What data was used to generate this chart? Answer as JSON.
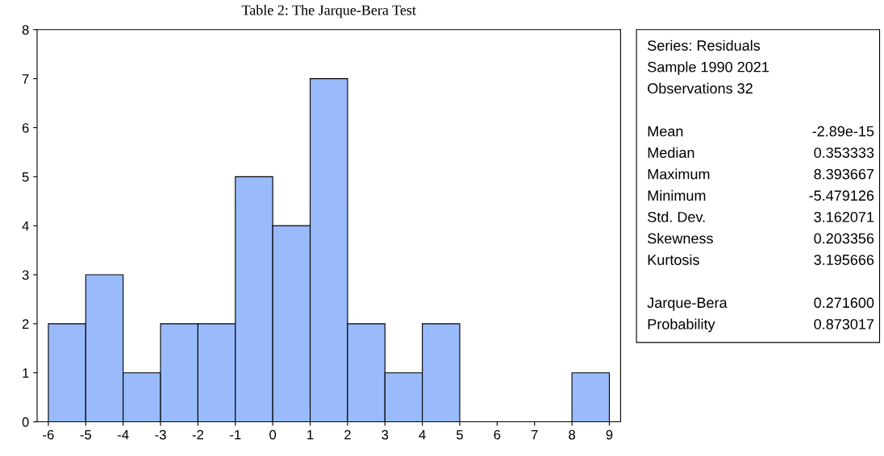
{
  "chart_data": {
    "type": "histogram",
    "title": "Table 2: The Jarque-Bera Test",
    "bins": [
      -6,
      -5,
      -4,
      -3,
      -2,
      -1,
      0,
      1,
      2,
      3,
      4,
      5,
      6,
      7,
      8,
      9
    ],
    "values": [
      2,
      3,
      1,
      2,
      2,
      5,
      4,
      7,
      2,
      1,
      2,
      0,
      0,
      0,
      1
    ],
    "color": "#99bbfc",
    "xlim": [
      -6.3,
      9.3
    ],
    "xticks": [
      -6,
      -5,
      -4,
      -3,
      -2,
      -1,
      0,
      1,
      2,
      3,
      4,
      5,
      6,
      7,
      8,
      9
    ],
    "ylim": [
      0,
      8
    ],
    "yticks": [
      0,
      1,
      2,
      3,
      4,
      5,
      6,
      7,
      8
    ],
    "grid": false,
    "legend": false,
    "annotations": [
      "Series: Residuals",
      "Sample 1990 2021",
      "Observations 32",
      "Mean\t-2.89e-15",
      "Median\t0.353333",
      "Maximum\t8.393667",
      "Minimum\t-5.479126",
      "Std. Dev.\t3.162071",
      "Skewness\t0.203356",
      "Kurtosis\t3.195666",
      "Jarque-Bera\t0.271600",
      "Probability\t0.873017"
    ]
  }
}
